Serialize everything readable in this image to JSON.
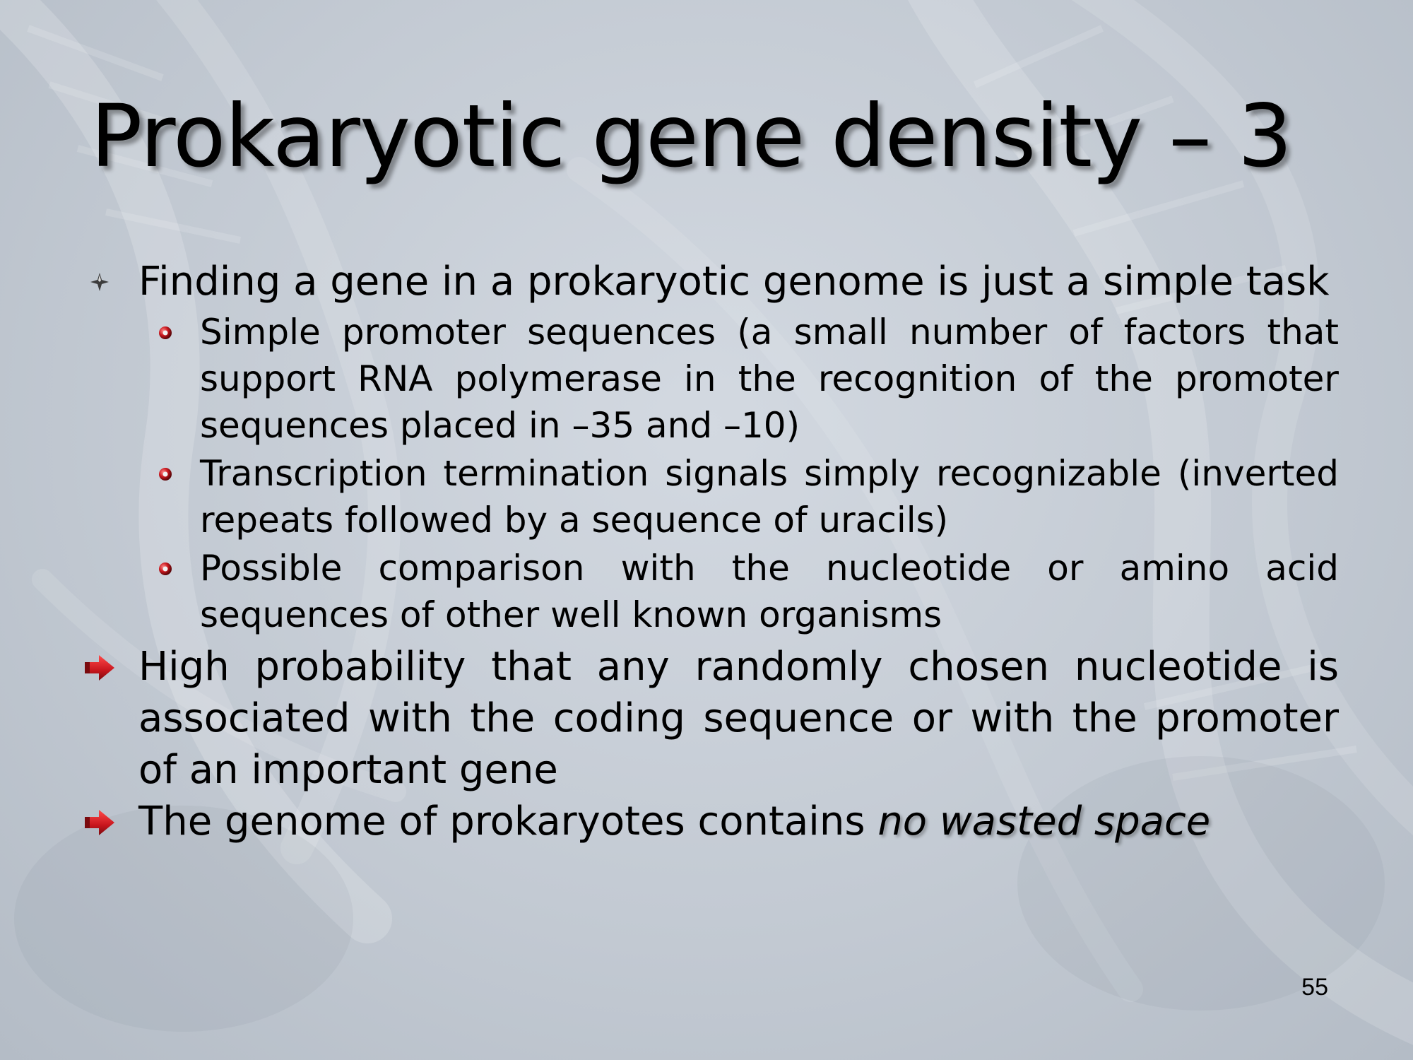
{
  "slide": {
    "title": "Prokaryotic gene density – 3",
    "bullets": [
      {
        "text": "Finding a gene in a prokaryotic genome is just a simple task",
        "icon": "sparkle-bullet-icon",
        "sub": [
          "Simple promoter sequences (a small number of factors that support RNA polymerase in the recognition of the promoter sequences placed in –35 and –10)",
          "Transcription termination signals simply recognizable (inverted repeats followed by a sequence of uracils)",
          "Possible comparison with the nucleotide or amino acid sequences of other well known organisms"
        ]
      },
      {
        "text": "High probability that any randomly chosen nucleotide is associated with the coding sequence or with the promoter of an important gene",
        "icon": "red-arrow-bullet-icon"
      },
      {
        "text_plain": "The genome of prokaryotes contains ",
        "text_emphasis": "no wasted space",
        "icon": "red-arrow-bullet-icon"
      }
    ],
    "page_number": "55"
  },
  "colors": {
    "text": "#000000",
    "bullet_red": "#c8161d",
    "background": "#c7cdd6"
  }
}
